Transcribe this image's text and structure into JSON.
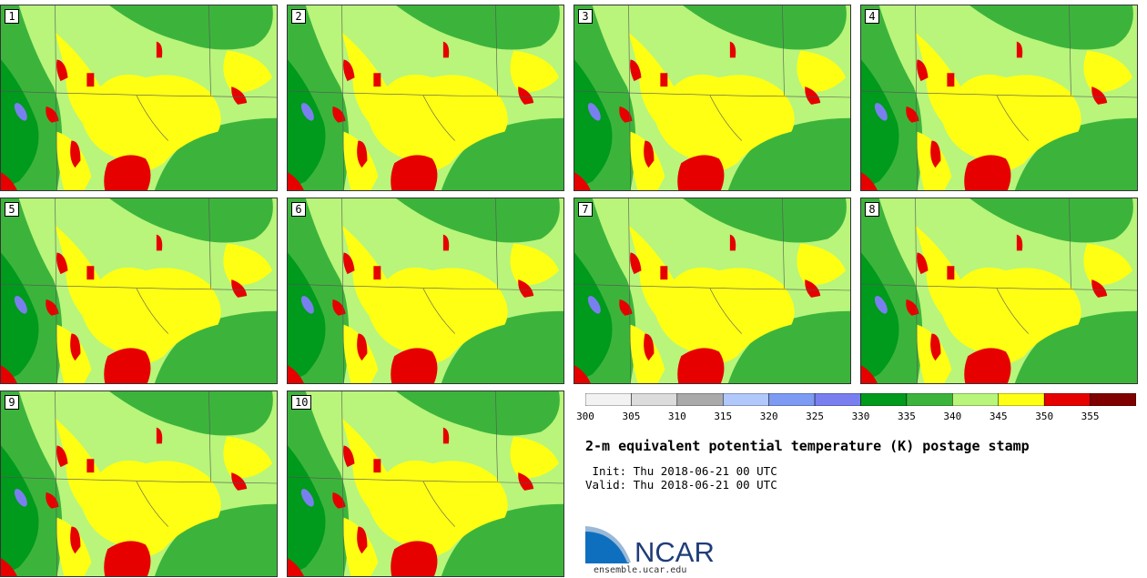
{
  "panels": [
    {
      "label": "1"
    },
    {
      "label": "2"
    },
    {
      "label": "3"
    },
    {
      "label": "4"
    },
    {
      "label": "5"
    },
    {
      "label": "6"
    },
    {
      "label": "7"
    },
    {
      "label": "8"
    },
    {
      "label": "9"
    },
    {
      "label": "10"
    }
  ],
  "colorbar": {
    "colors": [
      "#f2f2f2",
      "#dcdcdc",
      "#aaaaaa",
      "#b0c8fa",
      "#7d9bf2",
      "#7a7ff0",
      "#009a1c",
      "#3cb43c",
      "#b8f57a",
      "#ffff14",
      "#e60000",
      "#800000"
    ],
    "tick_labels": [
      "300",
      "305",
      "310",
      "315",
      "320",
      "325",
      "330",
      "335",
      "340",
      "345",
      "350",
      "355"
    ]
  },
  "title": "2-m equivalent potential temperature (K) postage stamp",
  "init": " Init: Thu 2018-06-21 00 UTC",
  "valid": "Valid: Thu 2018-06-21 00 UTC",
  "logo": {
    "text": "NCAR",
    "url": "ensemble.ucar.edu",
    "color": "#1f3d7a"
  }
}
